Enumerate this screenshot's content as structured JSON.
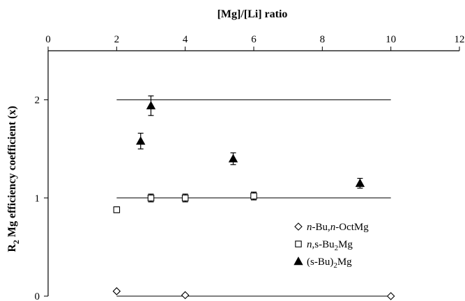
{
  "chart_data": {
    "type": "scatter",
    "title": "",
    "xlabel": "[Mg]/[Li] ratio",
    "ylabel_main": "R",
    "ylabel_sub": "2",
    "ylabel_rest": " Mg efficiency coefficient (x)",
    "xlim": [
      0,
      12
    ],
    "ylim": [
      0,
      2.5
    ],
    "x_ticks": [
      0,
      2,
      4,
      6,
      8,
      10,
      12
    ],
    "y_ticks": [
      0,
      1,
      2
    ],
    "x_axis_position": "top",
    "grid": false,
    "legend_position": "lower-right",
    "reference_lines": [
      {
        "y": 0,
        "x_start": 2,
        "x_end": 10
      },
      {
        "y": 1,
        "x_start": 2,
        "x_end": 10
      },
      {
        "y": 2,
        "x_start": 2,
        "x_end": 10
      }
    ],
    "series": [
      {
        "name": "n-Bu,n-OctMg",
        "legend_parts": [
          {
            "t": "n",
            "i": true
          },
          {
            "t": "-Bu,",
            "i": false
          },
          {
            "t": "n",
            "i": true
          },
          {
            "t": "-OctMg",
            "i": false
          }
        ],
        "marker": "diamond-open",
        "points": [
          {
            "x": 2.0,
            "y": 0.05
          },
          {
            "x": 4.0,
            "y": 0.01
          },
          {
            "x": 10.0,
            "y": 0.0
          }
        ]
      },
      {
        "name": "n,s-Bu2Mg",
        "legend_parts": [
          {
            "t": "n",
            "i": true
          },
          {
            "t": ",s-Bu",
            "i": false
          },
          {
            "t": "2",
            "sub": true
          },
          {
            "t": "Mg",
            "i": false
          }
        ],
        "marker": "square-open",
        "points": [
          {
            "x": 2.0,
            "y": 0.88,
            "err": 0.03
          },
          {
            "x": 3.0,
            "y": 1.0,
            "err": 0.04
          },
          {
            "x": 4.0,
            "y": 1.0,
            "err": 0.04
          },
          {
            "x": 6.0,
            "y": 1.02,
            "err": 0.04
          }
        ]
      },
      {
        "name": "(s-Bu)2Mg",
        "legend_parts": [
          {
            "t": "(s-Bu)",
            "i": false
          },
          {
            "t": "2",
            "sub": true
          },
          {
            "t": "Mg",
            "i": false
          }
        ],
        "marker": "triangle-filled",
        "points": [
          {
            "x": 2.7,
            "y": 1.58,
            "err": 0.08
          },
          {
            "x": 3.0,
            "y": 1.94,
            "err": 0.1
          },
          {
            "x": 5.4,
            "y": 1.4,
            "err": 0.06
          },
          {
            "x": 9.1,
            "y": 1.15,
            "err": 0.05
          }
        ]
      }
    ]
  }
}
